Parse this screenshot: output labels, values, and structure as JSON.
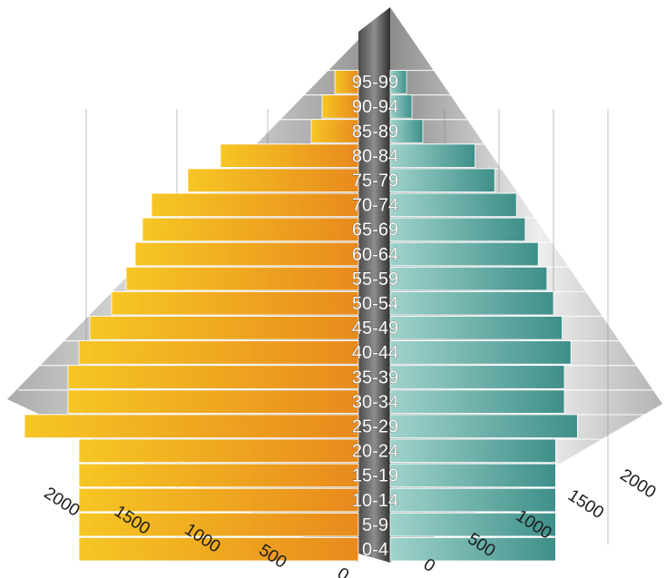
{
  "chart_data": {
    "type": "bar",
    "subtype": "population-pyramid-3d",
    "title": "",
    "categories": [
      "0-4",
      "5-9",
      "10-14",
      "15-19",
      "20-24",
      "25-29",
      "30-34",
      "35-39",
      "40-44",
      "45-49",
      "50-54",
      "55-59",
      "60-64",
      "65-69",
      "70-74",
      "75-79",
      "80-84",
      "85-89",
      "90-94",
      "95-99"
    ],
    "series": [
      {
        "side": "left",
        "color": "#f0a21e",
        "values": [
          1540,
          1540,
          1540,
          1540,
          1540,
          1840,
          1600,
          1600,
          1540,
          1480,
          1360,
          1280,
          1230,
          1190,
          1140,
          940,
          760,
          260,
          200,
          130
        ]
      },
      {
        "side": "right",
        "color": "#4a9f98",
        "values": [
          1520,
          1520,
          1520,
          1520,
          1520,
          1720,
          1600,
          1600,
          1660,
          1580,
          1500,
          1440,
          1360,
          1240,
          1160,
          960,
          780,
          300,
          200,
          150
        ]
      }
    ],
    "axis_ticks": [
      "0",
      "500",
      "1000",
      "1500",
      "2000"
    ],
    "xlim": [
      0,
      2000
    ],
    "grid": true,
    "legend": "none"
  }
}
